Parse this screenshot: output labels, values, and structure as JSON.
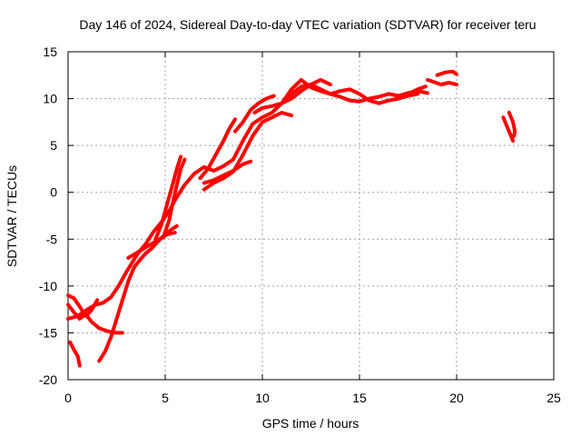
{
  "chart_data": {
    "type": "line",
    "title": "Day 146 of 2024, Sidereal Day-to-day VTEC variation (SDTVAR) for receiver teru",
    "xlabel": "GPS time / hours",
    "ylabel": "SDTVAR / TECUs",
    "xlim": [
      0,
      25
    ],
    "ylim": [
      -20,
      15
    ],
    "xticks": [
      0,
      5,
      10,
      15,
      20,
      25
    ],
    "yticks": [
      -20,
      -15,
      -10,
      -5,
      0,
      5,
      10,
      15
    ],
    "grid": true,
    "color": "#ff0000",
    "series": [
      {
        "name": "track-1",
        "points": [
          [
            0.0,
            -12.0
          ],
          [
            0.3,
            -12.8
          ],
          [
            0.6,
            -13.5
          ],
          [
            0.9,
            -13.0
          ],
          [
            1.2,
            -13.8
          ],
          [
            1.6,
            -14.5
          ],
          [
            2.0,
            -14.8
          ],
          [
            2.4,
            -15.0
          ],
          [
            2.8,
            -15.0
          ]
        ]
      },
      {
        "name": "track-2",
        "points": [
          [
            0.0,
            -11.0
          ],
          [
            0.3,
            -11.3
          ],
          [
            0.6,
            -12.2
          ],
          [
            0.9,
            -13.2
          ],
          [
            1.2,
            -12.6
          ],
          [
            1.5,
            -11.5
          ]
        ]
      },
      {
        "name": "track-3",
        "points": [
          [
            0.0,
            -13.5
          ],
          [
            0.5,
            -13.2
          ],
          [
            1.0,
            -12.5
          ],
          [
            1.4,
            -12.0
          ],
          [
            1.8,
            -11.8
          ],
          [
            2.2,
            -11.2
          ],
          [
            2.6,
            -10.0
          ],
          [
            3.0,
            -8.5
          ],
          [
            3.3,
            -7.5
          ],
          [
            3.6,
            -6.5
          ],
          [
            4.0,
            -5.5
          ],
          [
            4.4,
            -4.2
          ],
          [
            4.8,
            -3.2
          ],
          [
            5.2,
            -2.0
          ],
          [
            5.6,
            -0.5
          ],
          [
            6.0,
            0.8
          ],
          [
            6.5,
            2.0
          ],
          [
            7.0,
            2.7
          ],
          [
            7.5,
            2.3
          ],
          [
            8.0,
            2.8
          ],
          [
            8.5,
            3.5
          ],
          [
            9.0,
            5.5
          ],
          [
            9.5,
            7.3
          ],
          [
            10.0,
            8.0
          ],
          [
            10.5,
            8.5
          ],
          [
            11.0,
            9.5
          ],
          [
            11.5,
            10.5
          ],
          [
            12.0,
            11.3
          ],
          [
            12.5,
            11.5
          ],
          [
            13.0,
            11.0
          ],
          [
            13.5,
            10.5
          ],
          [
            14.0,
            10.2
          ],
          [
            14.5,
            9.8
          ],
          [
            15.0,
            9.7
          ],
          [
            15.5,
            10.0
          ],
          [
            16.0,
            10.2
          ],
          [
            16.5,
            10.5
          ],
          [
            17.0,
            10.3
          ],
          [
            17.5,
            10.6
          ],
          [
            18.0,
            10.8
          ],
          [
            18.5,
            10.6
          ]
        ]
      },
      {
        "name": "track-4",
        "points": [
          [
            0.1,
            -16.0
          ],
          [
            0.3,
            -16.8
          ],
          [
            0.5,
            -17.5
          ],
          [
            0.6,
            -18.5
          ]
        ]
      },
      {
        "name": "track-5",
        "points": [
          [
            1.6,
            -18.0
          ],
          [
            1.9,
            -17.0
          ],
          [
            2.2,
            -15.5
          ],
          [
            2.5,
            -13.5
          ],
          [
            2.8,
            -11.5
          ],
          [
            3.1,
            -9.5
          ],
          [
            3.4,
            -8.0
          ],
          [
            3.7,
            -7.2
          ],
          [
            4.0,
            -6.5
          ],
          [
            4.3,
            -6.0
          ],
          [
            4.6,
            -5.3
          ],
          [
            5.0,
            -4.5
          ],
          [
            5.3,
            -4.0
          ],
          [
            5.6,
            -3.6
          ]
        ]
      },
      {
        "name": "track-6",
        "points": [
          [
            3.1,
            -7.0
          ],
          [
            3.5,
            -6.5
          ],
          [
            3.9,
            -6.0
          ],
          [
            4.3,
            -5.5
          ],
          [
            4.7,
            -5.0
          ],
          [
            5.1,
            -4.5
          ],
          [
            5.5,
            -4.3
          ]
        ]
      },
      {
        "name": "track-7",
        "points": [
          [
            4.5,
            -5.0
          ],
          [
            4.8,
            -3.5
          ],
          [
            5.0,
            -2.0
          ],
          [
            5.2,
            -0.5
          ],
          [
            5.4,
            1.0
          ],
          [
            5.6,
            2.5
          ],
          [
            5.8,
            3.8
          ]
        ]
      },
      {
        "name": "track-8",
        "points": [
          [
            4.9,
            -4.8
          ],
          [
            5.2,
            -3.0
          ],
          [
            5.4,
            -1.0
          ],
          [
            5.6,
            0.8
          ],
          [
            5.8,
            2.5
          ],
          [
            6.0,
            3.5
          ]
        ]
      },
      {
        "name": "track-9",
        "points": [
          [
            6.8,
            1.5
          ],
          [
            7.2,
            2.5
          ],
          [
            7.6,
            4.0
          ],
          [
            8.0,
            5.5
          ],
          [
            8.3,
            6.8
          ],
          [
            8.6,
            7.8
          ]
        ]
      },
      {
        "name": "track-10",
        "points": [
          [
            7.0,
            1.0
          ],
          [
            7.5,
            1.3
          ],
          [
            8.0,
            1.8
          ],
          [
            8.5,
            2.3
          ],
          [
            9.0,
            3.0
          ],
          [
            9.4,
            3.3
          ]
        ]
      },
      {
        "name": "track-11",
        "points": [
          [
            7.0,
            0.3
          ],
          [
            7.5,
            1.0
          ],
          [
            8.0,
            1.5
          ],
          [
            8.5,
            2.2
          ],
          [
            9.0,
            4.0
          ],
          [
            9.5,
            6.0
          ],
          [
            10.0,
            7.5
          ],
          [
            10.5,
            8.0
          ],
          [
            11.0,
            8.5
          ],
          [
            11.5,
            8.2
          ]
        ]
      },
      {
        "name": "track-12",
        "points": [
          [
            8.6,
            6.5
          ],
          [
            9.0,
            7.5
          ],
          [
            9.4,
            8.8
          ],
          [
            9.8,
            9.5
          ],
          [
            10.2,
            10.0
          ],
          [
            10.6,
            10.3
          ]
        ]
      },
      {
        "name": "track-13",
        "points": [
          [
            9.6,
            8.5
          ],
          [
            10.0,
            9.0
          ],
          [
            10.5,
            9.2
          ],
          [
            11.0,
            9.5
          ],
          [
            11.5,
            10.0
          ],
          [
            12.0,
            10.8
          ],
          [
            12.5,
            11.5
          ],
          [
            13.0,
            12.0
          ],
          [
            13.5,
            11.5
          ]
        ]
      },
      {
        "name": "track-14",
        "points": [
          [
            11.0,
            9.5
          ],
          [
            11.5,
            11.0
          ],
          [
            12.0,
            12.0
          ],
          [
            12.5,
            11.2
          ],
          [
            13.0,
            10.8
          ],
          [
            13.5,
            10.5
          ],
          [
            14.0,
            10.8
          ],
          [
            14.5,
            11.0
          ],
          [
            15.0,
            10.5
          ],
          [
            15.5,
            9.8
          ],
          [
            16.0,
            9.5
          ],
          [
            16.5,
            9.8
          ],
          [
            17.0,
            10.0
          ],
          [
            17.5,
            10.3
          ],
          [
            18.0,
            10.5
          ]
        ]
      },
      {
        "name": "track-15",
        "points": [
          [
            17.0,
            10.2
          ],
          [
            17.5,
            10.5
          ],
          [
            18.0,
            11.0
          ],
          [
            18.4,
            11.3
          ]
        ]
      },
      {
        "name": "track-16",
        "points": [
          [
            18.5,
            12.0
          ],
          [
            18.8,
            11.8
          ],
          [
            19.2,
            11.5
          ],
          [
            19.6,
            11.7
          ],
          [
            20.0,
            11.5
          ]
        ]
      },
      {
        "name": "track-17",
        "points": [
          [
            19.0,
            12.5
          ],
          [
            19.4,
            12.8
          ],
          [
            19.8,
            12.9
          ],
          [
            20.0,
            12.6
          ]
        ]
      },
      {
        "name": "track-18",
        "points": [
          [
            22.4,
            8.0
          ],
          [
            22.6,
            7.0
          ],
          [
            22.8,
            6.0
          ],
          [
            22.9,
            5.5
          ]
        ]
      },
      {
        "name": "track-19",
        "points": [
          [
            22.7,
            8.5
          ],
          [
            22.9,
            7.5
          ],
          [
            23.0,
            6.5
          ],
          [
            22.95,
            6.0
          ]
        ]
      }
    ]
  }
}
